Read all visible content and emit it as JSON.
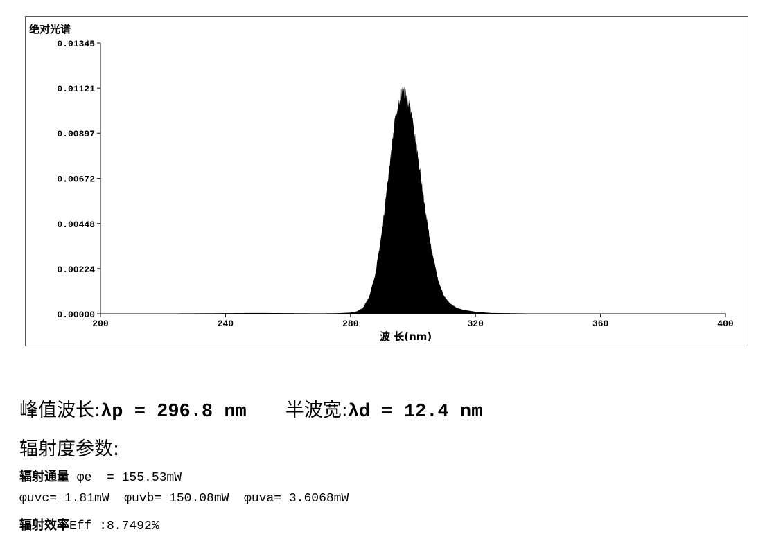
{
  "chart_data": {
    "type": "area",
    "ylabel": "绝对光谱",
    "xlabel": "波 长(nm)",
    "xlim": [
      200,
      400
    ],
    "ylim": [
      0,
      0.01345
    ],
    "xticks": [
      "200",
      "240",
      "280",
      "320",
      "360",
      "400"
    ],
    "yticks": [
      "0.00000",
      "0.00224",
      "0.00448",
      "0.00672",
      "0.00897",
      "0.01121",
      "0.01345"
    ],
    "grid": false,
    "fill_color": "#000000",
    "x": [
      200,
      240,
      250,
      270,
      276,
      280,
      282,
      284,
      286,
      288,
      290,
      292,
      294,
      296,
      296.8,
      298,
      300,
      302,
      304,
      306,
      308,
      310,
      312,
      314,
      316,
      320,
      325,
      340,
      400
    ],
    "y": [
      0,
      3e-05,
      4e-05,
      2e-05,
      3e-05,
      6e-05,
      0.00012,
      0.0003,
      0.00085,
      0.00201,
      0.004,
      0.00667,
      0.00934,
      0.01094,
      0.0111,
      0.01086,
      0.00953,
      0.0074,
      0.0051,
      0.00313,
      0.0017,
      0.00085,
      0.0005,
      0.0003,
      0.0002,
      0.0001,
      4e-05,
      1e-05,
      0
    ]
  },
  "results": {
    "peak_label": "峰值波长:",
    "peak_value": "λp = 296.8 nm",
    "fwhm_label": "半波宽:",
    "fwhm_value": "λd = 12.4 nm",
    "radiometric_title": "辐射度参数:",
    "flux_label": "辐射通量",
    "flux_value": " φe  = 155.53mW",
    "bands": "φuvc= 1.81mW  φuvb= 150.08mW  φuva= 3.6068mW",
    "eff_label": "辐射效率",
    "eff_value": "Eff :8.7492%"
  }
}
